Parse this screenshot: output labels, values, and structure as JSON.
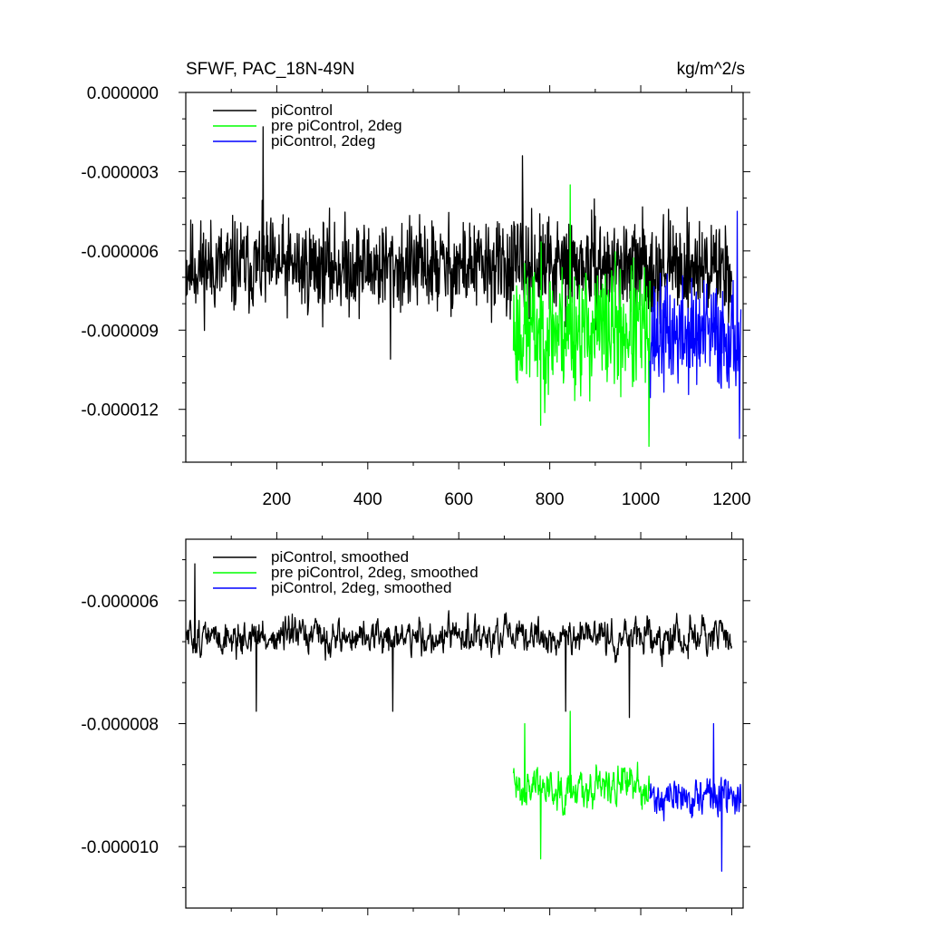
{
  "figure": {
    "top_left_title": "SFWF, PAC_18N-49N",
    "top_right_units": "kg/m^2/s"
  },
  "chart_data": [
    {
      "type": "line",
      "panel": "top",
      "xlim": [
        0,
        1225
      ],
      "ylim": [
        -1.4e-05,
        0.0
      ],
      "x_ticks": [
        200,
        400,
        600,
        800,
        1000,
        1200
      ],
      "x_tick_labels": [
        "200",
        "400",
        "600",
        "800",
        "1000",
        "1200"
      ],
      "y_ticks": [
        0.0,
        -3e-06,
        -6e-06,
        -9e-06,
        -1.2e-05
      ],
      "y_tick_labels": [
        "0.000000",
        "-0.000003",
        "-0.000006",
        "-0.000009",
        "-0.000012"
      ],
      "legend_position": "top-left",
      "series": [
        {
          "name": "piControl",
          "color": "#000000",
          "x_start": 1,
          "x_end": 1200,
          "mean": -6.6e-06,
          "noise": 1.1e-06,
          "spikes": [
            [
              170,
              -1.3e-06
            ],
            [
              740,
              -2.4e-06
            ],
            [
              450,
              -1.01e-05
            ]
          ],
          "seed": 11
        },
        {
          "name": "pre piControl, 2deg",
          "color": "#00ff00",
          "x_start": 720,
          "x_end": 1020,
          "mean": -9e-06,
          "noise": 1.5e-06,
          "spikes": [
            [
              845,
              -3.5e-06
            ],
            [
              1018,
              -1.34e-05
            ],
            [
              780,
              -1.26e-05
            ]
          ],
          "seed": 23
        },
        {
          "name": "piControl, 2deg",
          "color": "#0000ff",
          "x_start": 1020,
          "x_end": 1220,
          "mean": -9.2e-06,
          "noise": 1.3e-06,
          "spikes": [
            [
              1212,
              -4.5e-06
            ],
            [
              1217,
              -1.31e-05
            ]
          ],
          "seed": 37
        }
      ]
    },
    {
      "type": "line",
      "panel": "bottom",
      "xlim": [
        0,
        1225
      ],
      "ylim": [
        -1.1e-05,
        -5e-06
      ],
      "x_ticks": [
        200,
        400,
        600,
        800,
        1000,
        1200
      ],
      "y_ticks": [
        -6e-06,
        -8e-06,
        -1e-05
      ],
      "y_tick_labels": [
        "-0.000006",
        "-0.000008",
        "-0.000010"
      ],
      "legend_position": "top-left",
      "series": [
        {
          "name": "piControl, smoothed",
          "color": "#000000",
          "x_start": 1,
          "x_end": 1200,
          "mean": -6.6e-06,
          "noise": 3.2e-07,
          "spikes": [
            [
              20,
              -5.4e-06
            ],
            [
              155,
              -7.8e-06
            ],
            [
              455,
              -7.8e-06
            ],
            [
              835,
              -7.8e-06
            ],
            [
              975,
              -7.9e-06
            ]
          ],
          "seed": 51
        },
        {
          "name": "pre piControl, 2deg, smoothed",
          "color": "#00ff00",
          "x_start": 720,
          "x_end": 1020,
          "mean": -9e-06,
          "noise": 3.8e-07,
          "spikes": [
            [
              745,
              -8e-06
            ],
            [
              845,
              -7.8e-06
            ],
            [
              780,
              -1.02e-05
            ]
          ],
          "seed": 63
        },
        {
          "name": "piControl, 2deg, smoothed",
          "color": "#0000ff",
          "x_start": 1020,
          "x_end": 1220,
          "mean": -9.2e-06,
          "noise": 3.6e-07,
          "spikes": [
            [
              1160,
              -8e-06
            ],
            [
              1178,
              -1.04e-05
            ]
          ],
          "seed": 71
        }
      ]
    }
  ]
}
